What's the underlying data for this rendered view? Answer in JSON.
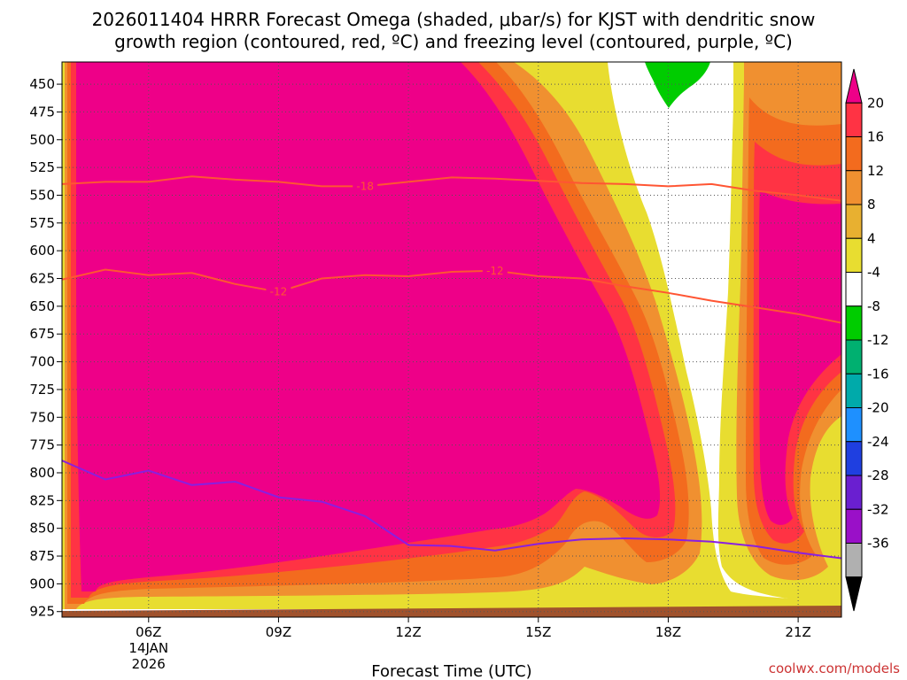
{
  "title_line1": "2026011404 HRRR Forecast Omega (shaded, μbar/s) for KJST with dendritic snow",
  "title_line2": "growth region (contoured, red, ºC) and freezing level (contoured, purple, ºC)",
  "credit": "coolwx.com/models",
  "chart_data": {
    "type": "time-height contour",
    "title": "2026011404 HRRR Forecast Omega (shaded, μbar/s) for KJST with dendritic snow growth region (contoured, red, ºC) and freezing level (contoured, purple, ºC)",
    "xlabel": "Forecast Time (UTC)",
    "ylabel": "",
    "x_ticks": [
      {
        "hour": 6,
        "label": "06Z",
        "sub1": "14JAN",
        "sub2": "2026"
      },
      {
        "hour": 9,
        "label": "09Z",
        "sub1": "",
        "sub2": ""
      },
      {
        "hour": 12,
        "label": "12Z",
        "sub1": "",
        "sub2": ""
      },
      {
        "hour": 15,
        "label": "15Z",
        "sub1": "",
        "sub2": ""
      },
      {
        "hour": 18,
        "label": "18Z",
        "sub1": "",
        "sub2": ""
      },
      {
        "hour": 21,
        "label": "21Z",
        "sub1": "",
        "sub2": ""
      }
    ],
    "xlim": [
      4,
      22
    ],
    "y_ticks": [
      450,
      475,
      500,
      525,
      550,
      575,
      600,
      625,
      650,
      675,
      700,
      725,
      750,
      775,
      800,
      825,
      850,
      875,
      900,
      925
    ],
    "ylim_hpa": [
      430,
      930
    ],
    "grid": true,
    "colorbar": {
      "labels": [
        "20",
        "16",
        "12",
        "8",
        "4",
        "-4",
        "-8",
        "-12",
        "-16",
        "-20",
        "-24",
        "-28",
        "-32",
        "-36"
      ],
      "colors": [
        "#ee0088",
        "#ff3344",
        "#f36b1e",
        "#f09030",
        "#e8b030",
        "#e8dd30",
        "#ffffff",
        "#00cc00",
        "#00b070",
        "#00aaaa",
        "#1e90ff",
        "#1f3fe0",
        "#6a1fd0",
        "#9a10c8",
        "#b0b0b0",
        "#000000"
      ]
    },
    "omega_fill_levels": [
      {
        "level": "20",
        "color": "#ee0088"
      },
      {
        "level": "16",
        "color": "#ff3344"
      },
      {
        "level": "12",
        "color": "#f36b1e"
      },
      {
        "level": "8",
        "color": "#f09030"
      },
      {
        "level": "4",
        "color": "#e8dd30"
      },
      {
        "level": "-4",
        "color": "#ffffff"
      },
      {
        "level": "-8",
        "color": "#00cc00"
      }
    ],
    "contours": [
      {
        "label": "-18",
        "color": "#ff5533",
        "points": [
          [
            4,
            540
          ],
          [
            5,
            538
          ],
          [
            6,
            538
          ],
          [
            7,
            533
          ],
          [
            8,
            536
          ],
          [
            9,
            538
          ],
          [
            10,
            542
          ],
          [
            11,
            542
          ],
          [
            12,
            538
          ],
          [
            13,
            534
          ],
          [
            14,
            535
          ],
          [
            15,
            537
          ],
          [
            16,
            539
          ],
          [
            17,
            540
          ],
          [
            18,
            542
          ],
          [
            19,
            540
          ],
          [
            20,
            546
          ],
          [
            21,
            550
          ],
          [
            22,
            555
          ]
        ],
        "label_at": [
          11,
          542
        ]
      },
      {
        "label": "-12",
        "color": "#ff5533",
        "points": [
          [
            4,
            626
          ],
          [
            5,
            617
          ],
          [
            6,
            622
          ],
          [
            7,
            620
          ],
          [
            8,
            630
          ],
          [
            9,
            637
          ],
          [
            10,
            625
          ],
          [
            11,
            622
          ],
          [
            12,
            623
          ],
          [
            13,
            619
          ],
          [
            14,
            618
          ],
          [
            15,
            623
          ],
          [
            16,
            625
          ],
          [
            17,
            632
          ],
          [
            18,
            638
          ],
          [
            19,
            645
          ],
          [
            20,
            651
          ],
          [
            21,
            657
          ],
          [
            22,
            665
          ]
        ],
        "label_at": [
          9,
          637
        ],
        "label_at2": [
          14,
          618
        ]
      },
      {
        "label": "",
        "color": "#8a1fe0",
        "points": [
          [
            4,
            789
          ],
          [
            5,
            806
          ],
          [
            6,
            798
          ],
          [
            7,
            811
          ],
          [
            8,
            808
          ],
          [
            9,
            822
          ],
          [
            10,
            826
          ],
          [
            11,
            839
          ],
          [
            12,
            865
          ],
          [
            13,
            866
          ],
          [
            14,
            870
          ],
          [
            15,
            864
          ],
          [
            16,
            860
          ],
          [
            17,
            859
          ],
          [
            18,
            860
          ],
          [
            19,
            862
          ],
          [
            20,
            866
          ],
          [
            21,
            872
          ],
          [
            22,
            877
          ]
        ]
      }
    ]
  }
}
